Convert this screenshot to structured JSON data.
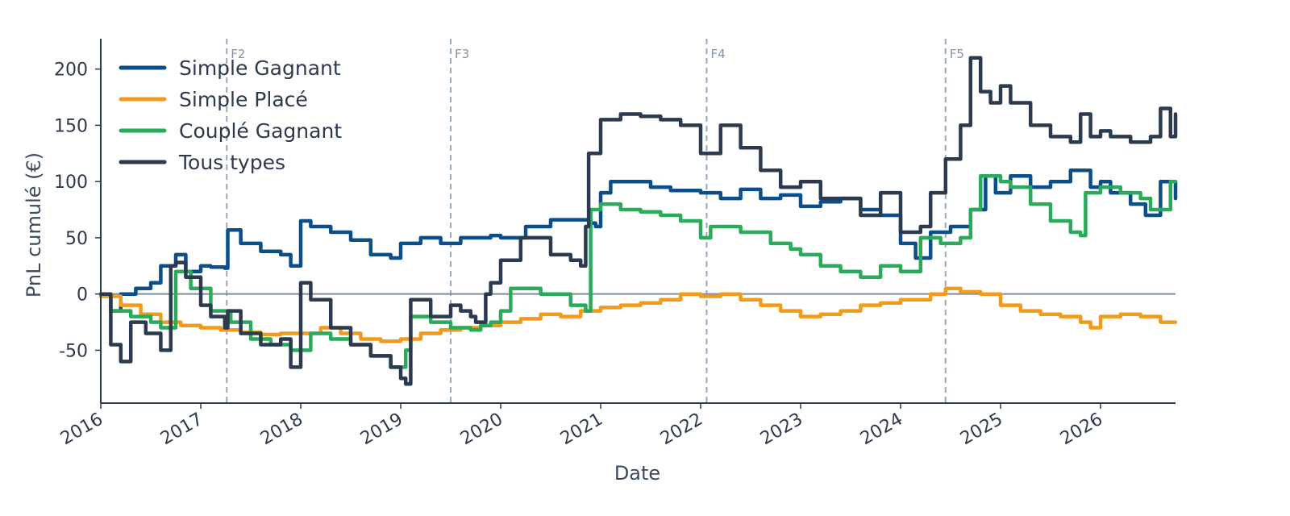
{
  "chart_data": {
    "type": "line",
    "xlabel": "Date",
    "ylabel": "PnL cumulé (€)",
    "xlim": [
      2016.0,
      2026.75
    ],
    "ylim": [
      -97,
      227
    ],
    "x_ticks": [
      2016,
      2017,
      2018,
      2019,
      2020,
      2021,
      2022,
      2023,
      2024,
      2025,
      2026
    ],
    "x_tick_labels": [
      "2016",
      "2017",
      "2018",
      "2019",
      "2020",
      "2021",
      "2022",
      "2023",
      "2024",
      "2025",
      "2026"
    ],
    "y_ticks": [
      -50,
      0,
      50,
      100,
      150,
      200
    ],
    "y_tick_labels": [
      "-50",
      "0",
      "50",
      "100",
      "150",
      "200"
    ],
    "zero_line": true,
    "grid": false,
    "legend_position": "top-left",
    "events": [
      {
        "label": "F2",
        "x": 2017.26
      },
      {
        "label": "F3",
        "x": 2019.5
      },
      {
        "label": "F4",
        "x": 2022.06
      },
      {
        "label": "F5",
        "x": 2024.45
      }
    ],
    "series": [
      {
        "name": "Simple Gagnant",
        "color": "#0b4f8a",
        "x": [
          2016.0,
          2016.1,
          2016.2,
          2016.35,
          2016.5,
          2016.6,
          2016.75,
          2016.85,
          2017.0,
          2017.1,
          2017.24,
          2017.27,
          2017.4,
          2017.6,
          2017.8,
          2017.9,
          2018.0,
          2018.1,
          2018.3,
          2018.5,
          2018.7,
          2018.9,
          2019.0,
          2019.2,
          2019.4,
          2019.6,
          2019.9,
          2020.0,
          2020.25,
          2020.5,
          2020.9,
          2020.95,
          2021.0,
          2021.1,
          2021.3,
          2021.5,
          2021.7,
          2022.0,
          2022.2,
          2022.4,
          2022.6,
          2022.8,
          2023.0,
          2023.2,
          2023.4,
          2023.6,
          2023.8,
          2024.0,
          2024.15,
          2024.3,
          2024.5,
          2024.7,
          2024.85,
          2024.95,
          2025.1,
          2025.3,
          2025.5,
          2025.7,
          2025.9,
          2026.0,
          2026.1,
          2026.3,
          2026.45,
          2026.6,
          2026.75
        ],
        "y": [
          0,
          -15,
          0,
          5,
          10,
          25,
          35,
          20,
          25,
          24,
          23,
          57,
          45,
          38,
          35,
          25,
          65,
          60,
          55,
          48,
          35,
          32,
          45,
          50,
          45,
          50,
          52,
          50,
          60,
          66,
          63,
          60,
          90,
          100,
          100,
          95,
          92,
          90,
          85,
          93,
          85,
          88,
          78,
          82,
          85,
          75,
          70,
          45,
          32,
          55,
          60,
          75,
          105,
          90,
          105,
          95,
          100,
          110,
          95,
          100,
          90,
          80,
          70,
          100,
          85
        ]
      },
      {
        "name": "Simple Placé",
        "color": "#f29b1b",
        "x": [
          2016.0,
          2016.2,
          2016.4,
          2016.6,
          2016.8,
          2017.0,
          2017.2,
          2017.4,
          2017.6,
          2017.8,
          2018.0,
          2018.2,
          2018.4,
          2018.6,
          2018.8,
          2019.0,
          2019.2,
          2019.4,
          2019.6,
          2019.8,
          2020.0,
          2020.2,
          2020.4,
          2020.6,
          2020.8,
          2021.0,
          2021.2,
          2021.4,
          2021.6,
          2021.8,
          2022.0,
          2022.2,
          2022.4,
          2022.6,
          2022.8,
          2023.0,
          2023.2,
          2023.4,
          2023.6,
          2023.8,
          2024.0,
          2024.2,
          2024.3,
          2024.45,
          2024.6,
          2024.8,
          2025.0,
          2025.2,
          2025.4,
          2025.6,
          2025.8,
          2025.9,
          2026.0,
          2026.2,
          2026.4,
          2026.6,
          2026.75
        ],
        "y": [
          -2,
          -10,
          -18,
          -25,
          -28,
          -30,
          -32,
          -34,
          -36,
          -35,
          -35,
          -30,
          -35,
          -40,
          -42,
          -40,
          -35,
          -32,
          -30,
          -28,
          -25,
          -22,
          -18,
          -20,
          -15,
          -12,
          -10,
          -8,
          -5,
          0,
          -2,
          0,
          -5,
          -10,
          -15,
          -20,
          -18,
          -15,
          -10,
          -8,
          -5,
          -5,
          0,
          5,
          2,
          0,
          -10,
          -15,
          -18,
          -20,
          -25,
          -30,
          -20,
          -18,
          -20,
          -25,
          -25
        ]
      },
      {
        "name": "Couplé Gagnant",
        "color": "#2aab5b",
        "x": [
          2016.0,
          2016.1,
          2016.3,
          2016.5,
          2016.6,
          2016.75,
          2016.9,
          2017.1,
          2017.3,
          2017.5,
          2017.7,
          2017.9,
          2018.1,
          2018.3,
          2018.5,
          2018.7,
          2018.9,
          2019.05,
          2019.1,
          2019.3,
          2019.5,
          2019.7,
          2019.8,
          2019.9,
          2020.0,
          2020.1,
          2020.4,
          2020.7,
          2020.85,
          2020.9,
          2021.0,
          2021.2,
          2021.4,
          2021.6,
          2021.8,
          2022.0,
          2022.1,
          2022.4,
          2022.7,
          2022.9,
          2023.0,
          2023.2,
          2023.4,
          2023.6,
          2023.8,
          2024.0,
          2024.15,
          2024.2,
          2024.4,
          2024.6,
          2024.7,
          2024.8,
          2025.0,
          2025.1,
          2025.3,
          2025.5,
          2025.7,
          2025.8,
          2025.85,
          2026.0,
          2026.2,
          2026.4,
          2026.5,
          2026.6,
          2026.7,
          2026.75
        ],
        "y": [
          0,
          -15,
          -20,
          -25,
          -30,
          20,
          5,
          -15,
          -25,
          -40,
          -45,
          -50,
          -35,
          -40,
          -45,
          -55,
          -65,
          -50,
          -20,
          -25,
          -30,
          -32,
          -28,
          -25,
          -15,
          5,
          0,
          -10,
          -15,
          75,
          80,
          75,
          73,
          70,
          65,
          50,
          60,
          55,
          45,
          40,
          35,
          25,
          20,
          15,
          25,
          20,
          20,
          50,
          45,
          50,
          75,
          105,
          100,
          95,
          80,
          65,
          55,
          52,
          90,
          95,
          90,
          85,
          75,
          75,
          100,
          100
        ]
      },
      {
        "name": "Tous types",
        "color": "#2b3a4e",
        "x": [
          2016.0,
          2016.1,
          2016.2,
          2016.3,
          2016.45,
          2016.6,
          2016.7,
          2016.75,
          2016.85,
          2017.0,
          2017.1,
          2017.24,
          2017.27,
          2017.4,
          2017.6,
          2017.8,
          2017.9,
          2018.0,
          2018.1,
          2018.3,
          2018.5,
          2018.7,
          2018.9,
          2019.0,
          2019.05,
          2019.1,
          2019.3,
          2019.5,
          2019.6,
          2019.7,
          2019.75,
          2019.85,
          2019.9,
          2020.0,
          2020.2,
          2020.5,
          2020.7,
          2020.8,
          2020.85,
          2020.88,
          2021.0,
          2021.2,
          2021.4,
          2021.6,
          2021.8,
          2022.0,
          2022.2,
          2022.4,
          2022.6,
          2022.8,
          2023.0,
          2023.2,
          2023.4,
          2023.6,
          2023.8,
          2024.0,
          2024.2,
          2024.3,
          2024.45,
          2024.6,
          2024.7,
          2024.8,
          2024.9,
          2025.0,
          2025.1,
          2025.3,
          2025.5,
          2025.7,
          2025.8,
          2025.9,
          2026.0,
          2026.1,
          2026.3,
          2026.5,
          2026.6,
          2026.7,
          2026.75
        ],
        "y": [
          0,
          -45,
          -60,
          -25,
          -35,
          -50,
          25,
          28,
          15,
          -10,
          -20,
          -30,
          -15,
          -35,
          -45,
          -40,
          -65,
          10,
          -5,
          -30,
          -45,
          -55,
          -65,
          -75,
          -80,
          -5,
          -20,
          -10,
          -15,
          -20,
          -25,
          0,
          10,
          30,
          50,
          35,
          30,
          25,
          60,
          125,
          155,
          160,
          158,
          155,
          150,
          125,
          150,
          130,
          110,
          95,
          100,
          85,
          85,
          70,
          90,
          55,
          60,
          90,
          120,
          150,
          210,
          180,
          170,
          185,
          170,
          150,
          140,
          135,
          160,
          140,
          145,
          140,
          135,
          140,
          165,
          140,
          160
        ]
      }
    ]
  }
}
